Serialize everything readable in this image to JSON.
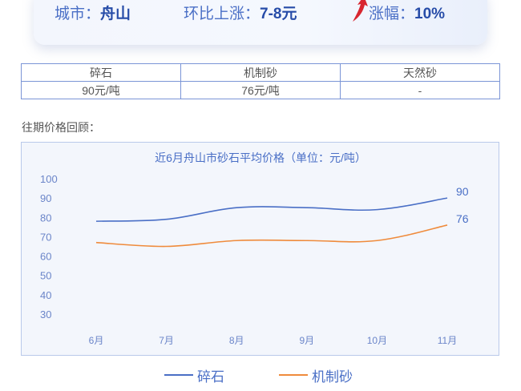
{
  "header": {
    "city_label": "城市：",
    "city_value": "舟山",
    "change_label": "环比上涨：",
    "change_value": "7-8元",
    "rate_label": "涨幅：",
    "rate_value": "10%",
    "arrow_icon": "red-up-arrow-icon"
  },
  "price_table": {
    "headers": [
      "碎石",
      "机制砂",
      "天然砂"
    ],
    "values": [
      "90元/吨",
      "76元/吨",
      "-"
    ]
  },
  "section_title": "往期价格回顾：",
  "chart_data": {
    "type": "line",
    "title": "近6月舟山市砂石平均价格（单位：元/吨）",
    "categories": [
      "6月",
      "7月",
      "8月",
      "9月",
      "10月",
      "11月"
    ],
    "ylim": [
      30,
      100
    ],
    "yticks": [
      "100",
      "90",
      "80",
      "70",
      "60",
      "50",
      "40",
      "30"
    ],
    "grid": false,
    "legend_position": "bottom",
    "series": [
      {
        "name": "碎石",
        "color": "#4a6fc6",
        "values": [
          78,
          79,
          85,
          85,
          84,
          90
        ],
        "end_label": "90"
      },
      {
        "name": "机制砂",
        "color": "#ef8b3c",
        "values": [
          67,
          65,
          68,
          68,
          68,
          76
        ],
        "end_label": "76"
      }
    ]
  }
}
